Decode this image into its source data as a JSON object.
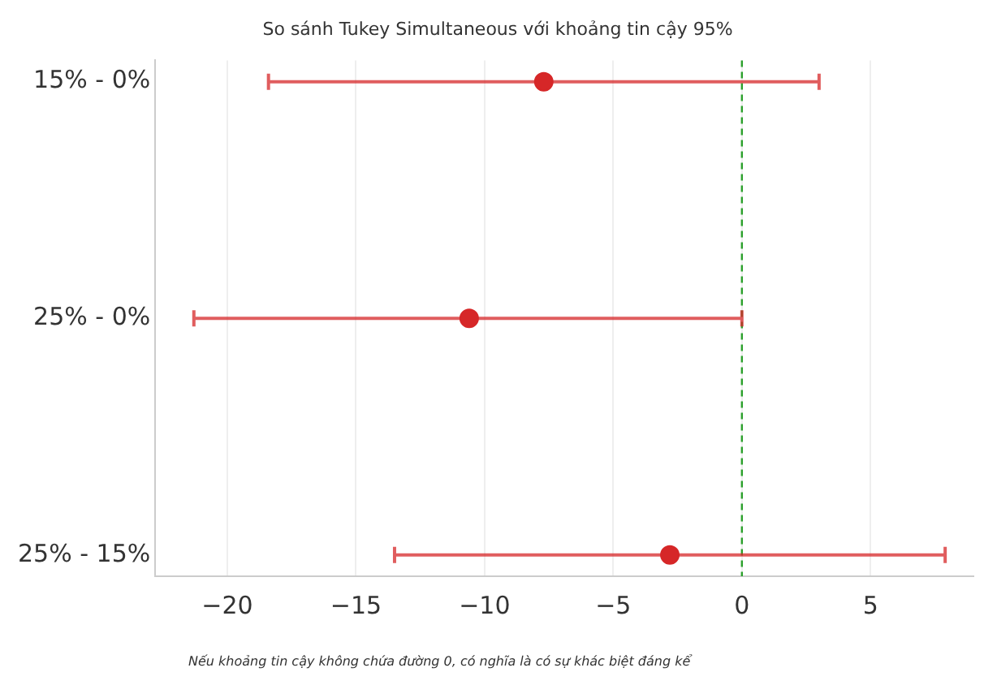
{
  "chart_data": {
    "type": "scatter",
    "orientation": "horizontal",
    "title": "So sánh Tukey Simultaneous với khoảng tin cậy 95%",
    "categories": [
      "15% - 0%",
      "25% - 0%",
      "25% - 15%"
    ],
    "values": [
      -7.7,
      -10.6,
      -2.8
    ],
    "errors": [
      [
        -18.4,
        3.0
      ],
      [
        -21.3,
        0.0
      ],
      [
        -13.5,
        7.9
      ]
    ],
    "color": "#d62728",
    "marker": "circle",
    "xlim": [
      -22.8,
      9
    ],
    "xticks": [
      {
        "value": -20,
        "label": "−20"
      },
      {
        "value": -15,
        "label": "−15"
      },
      {
        "value": -10,
        "label": "−10"
      },
      {
        "value": -5,
        "label": "−5"
      },
      0,
      5
    ],
    "grid": "x",
    "legend": false,
    "ref_lines": [
      {
        "axis": "x",
        "value": 0,
        "color": "#2ca02c",
        "line_style": "dashed"
      }
    ],
    "annotations": [
      "Nếu khoảng tin cậy không chứa đường 0, có nghĩa là có sự khác biệt đáng kể"
    ]
  }
}
